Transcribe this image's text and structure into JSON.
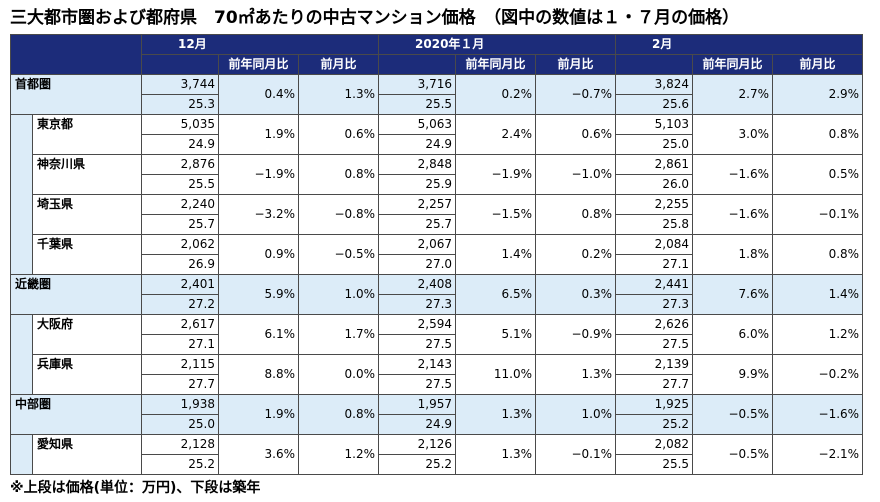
{
  "title": "三大都市圏および都府県　70㎡あたりの中古マンション価格　（図中の数値は１・７月の価格）",
  "note": "※上段は価格(単位：万円)、下段は築年",
  "columns": {
    "months": [
      "12月",
      "2020年１月",
      "2月"
    ],
    "sub_yoy": "前年同月比",
    "sub_mom": "前月比"
  },
  "rows": [
    {
      "name": "首都圏",
      "level": "region",
      "data": [
        {
          "price": "3,744",
          "age": "25.3",
          "yoy": "0.4%",
          "mom": "1.3%"
        },
        {
          "price": "3,716",
          "age": "25.5",
          "yoy": "0.2%",
          "mom": "−0.7%"
        },
        {
          "price": "3,824",
          "age": "25.6",
          "yoy": "2.7%",
          "mom": "2.9%"
        }
      ]
    },
    {
      "name": "東京都",
      "level": "pref",
      "data": [
        {
          "price": "5,035",
          "age": "24.9",
          "yoy": "1.9%",
          "mom": "0.6%"
        },
        {
          "price": "5,063",
          "age": "24.9",
          "yoy": "2.4%",
          "mom": "0.6%"
        },
        {
          "price": "5,103",
          "age": "25.0",
          "yoy": "3.0%",
          "mom": "0.8%"
        }
      ]
    },
    {
      "name": "神奈川県",
      "level": "pref",
      "data": [
        {
          "price": "2,876",
          "age": "25.5",
          "yoy": "−1.9%",
          "mom": "0.8%"
        },
        {
          "price": "2,848",
          "age": "25.9",
          "yoy": "−1.9%",
          "mom": "−1.0%"
        },
        {
          "price": "2,861",
          "age": "26.0",
          "yoy": "−1.6%",
          "mom": "0.5%"
        }
      ]
    },
    {
      "name": "埼玉県",
      "level": "pref",
      "data": [
        {
          "price": "2,240",
          "age": "25.7",
          "yoy": "−3.2%",
          "mom": "−0.8%"
        },
        {
          "price": "2,257",
          "age": "25.7",
          "yoy": "−1.5%",
          "mom": "0.8%"
        },
        {
          "price": "2,255",
          "age": "25.8",
          "yoy": "−1.6%",
          "mom": "−0.1%"
        }
      ]
    },
    {
      "name": "千葉県",
      "level": "pref",
      "data": [
        {
          "price": "2,062",
          "age": "26.9",
          "yoy": "0.9%",
          "mom": "−0.5%"
        },
        {
          "price": "2,067",
          "age": "27.0",
          "yoy": "1.4%",
          "mom": "0.2%"
        },
        {
          "price": "2,084",
          "age": "27.1",
          "yoy": "1.8%",
          "mom": "0.8%"
        }
      ]
    },
    {
      "name": "近畿圏",
      "level": "region",
      "data": [
        {
          "price": "2,401",
          "age": "27.2",
          "yoy": "5.9%",
          "mom": "1.0%"
        },
        {
          "price": "2,408",
          "age": "27.3",
          "yoy": "6.5%",
          "mom": "0.3%"
        },
        {
          "price": "2,441",
          "age": "27.3",
          "yoy": "7.6%",
          "mom": "1.4%"
        }
      ]
    },
    {
      "name": "大阪府",
      "level": "pref",
      "data": [
        {
          "price": "2,617",
          "age": "27.1",
          "yoy": "6.1%",
          "mom": "1.7%"
        },
        {
          "price": "2,594",
          "age": "27.5",
          "yoy": "5.1%",
          "mom": "−0.9%"
        },
        {
          "price": "2,626",
          "age": "27.5",
          "yoy": "6.0%",
          "mom": "1.2%"
        }
      ]
    },
    {
      "name": "兵庫県",
      "level": "pref",
      "data": [
        {
          "price": "2,115",
          "age": "27.7",
          "yoy": "8.8%",
          "mom": "0.0%"
        },
        {
          "price": "2,143",
          "age": "27.5",
          "yoy": "11.0%",
          "mom": "1.3%"
        },
        {
          "price": "2,139",
          "age": "27.7",
          "yoy": "9.9%",
          "mom": "−0.2%"
        }
      ]
    },
    {
      "name": "中部圏",
      "level": "region",
      "data": [
        {
          "price": "1,938",
          "age": "25.0",
          "yoy": "1.9%",
          "mom": "0.8%"
        },
        {
          "price": "1,957",
          "age": "24.9",
          "yoy": "1.3%",
          "mom": "1.0%"
        },
        {
          "price": "1,925",
          "age": "25.2",
          "yoy": "−0.5%",
          "mom": "−1.6%"
        }
      ]
    },
    {
      "name": "愛知県",
      "level": "pref",
      "data": [
        {
          "price": "2,128",
          "age": "25.2",
          "yoy": "3.6%",
          "mom": "1.2%"
        },
        {
          "price": "2,126",
          "age": "25.2",
          "yoy": "1.3%",
          "mom": "−0.1%"
        },
        {
          "price": "2,082",
          "age": "25.5",
          "yoy": "−0.5%",
          "mom": "−2.1%"
        }
      ]
    }
  ]
}
